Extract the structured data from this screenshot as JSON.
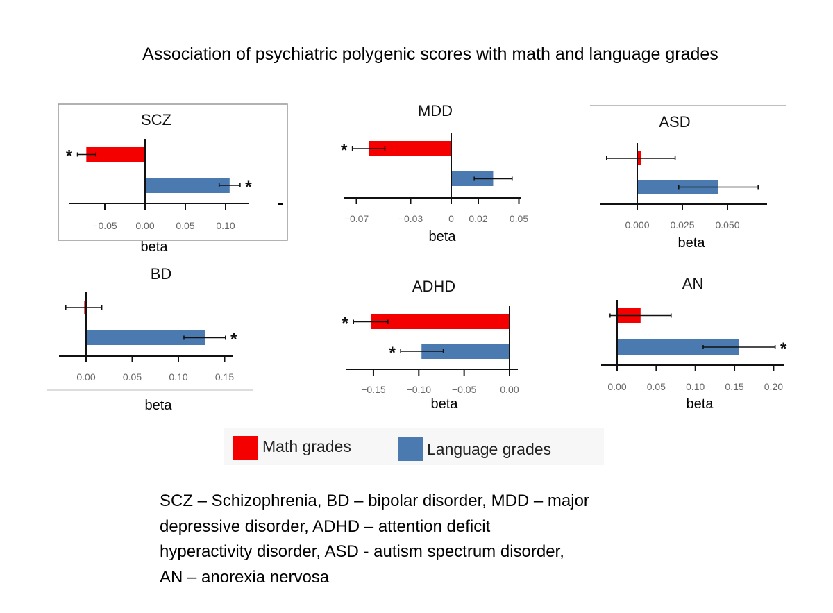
{
  "title": "Association of psychiatric polygenic scores with math and language grades",
  "colors": {
    "math": "#f40000",
    "language": "#4a7ab0"
  },
  "legend": {
    "math": "Math grades",
    "language": "Language grades"
  },
  "footnote": [
    "SCZ – Schizophrenia, BD – bipolar disorder, MDD – major",
    "depressive disorder, ADHD – attention deficit",
    "hyperactivity disorder, ASD - autism spectrum disorder,",
    "AN – anorexia nervosa"
  ],
  "chart_data": [
    {
      "type": "bar",
      "orientation": "horizontal",
      "title": "SCZ",
      "xlabel": "beta",
      "ticks": [
        -0.05,
        0,
        0.05,
        0.1
      ],
      "tick_labels": [
        "−0.05",
        "0.00",
        "0.05",
        "0.10"
      ],
      "xlim": [
        -0.09,
        0.12
      ],
      "series": [
        {
          "name": "Math grades",
          "value": -0.073,
          "ci": [
            -0.084,
            -0.061
          ],
          "significant": true
        },
        {
          "name": "Language grades",
          "value": 0.105,
          "ci": [
            0.092,
            0.118
          ],
          "significant": true
        }
      ]
    },
    {
      "type": "bar",
      "orientation": "horizontal",
      "title": "MDD",
      "xlabel": "beta",
      "ticks": [
        -0.07,
        -0.03,
        0,
        0.02,
        0.05
      ],
      "tick_labels": [
        "−0.07",
        "−0.03",
        "0",
        "0.02",
        "0.05"
      ],
      "xlim": [
        -0.08,
        0.05
      ],
      "series": [
        {
          "name": "Math grades",
          "value": -0.061,
          "ci": [
            -0.073,
            -0.049
          ],
          "significant": true
        },
        {
          "name": "Language grades",
          "value": 0.031,
          "ci": [
            0.017,
            0.045
          ],
          "significant": false
        }
      ]
    },
    {
      "type": "bar",
      "orientation": "horizontal",
      "title": "ASD",
      "xlabel": "beta",
      "ticks": [
        0,
        0.025,
        0.05
      ],
      "tick_labels": [
        "0.000",
        "0.025",
        "0.050"
      ],
      "xlim": [
        -0.021,
        0.072
      ],
      "series": [
        {
          "name": "Math grades",
          "value": 0.002,
          "ci": [
            -0.017,
            0.021
          ],
          "significant": false
        },
        {
          "name": "Language grades",
          "value": 0.045,
          "ci": [
            0.023,
            0.067
          ],
          "significant": false
        }
      ]
    },
    {
      "type": "bar",
      "orientation": "horizontal",
      "title": "BD",
      "xlabel": "beta",
      "ticks": [
        0,
        0.05,
        0.1,
        0.15
      ],
      "tick_labels": [
        "0.00",
        "0.05",
        "0.10",
        "0.15"
      ],
      "xlim": [
        -0.03,
        0.16
      ],
      "series": [
        {
          "name": "Math grades",
          "value": -0.002,
          "ci": [
            -0.022,
            0.017
          ],
          "significant": false
        },
        {
          "name": "Language grades",
          "value": 0.129,
          "ci": [
            0.106,
            0.151
          ],
          "significant": true
        }
      ]
    },
    {
      "type": "bar",
      "orientation": "horizontal",
      "title": "ADHD",
      "xlabel": "beta",
      "ticks": [
        -0.15,
        -0.1,
        -0.05,
        0
      ],
      "tick_labels": [
        "−0.15",
        "−0.10",
        "−0.05",
        "0.00"
      ],
      "xlim": [
        -0.18,
        0.01
      ],
      "series": [
        {
          "name": "Math grades",
          "value": -0.153,
          "ci": [
            -0.172,
            -0.134
          ],
          "significant": true
        },
        {
          "name": "Language grades",
          "value": -0.097,
          "ci": [
            -0.12,
            -0.073
          ],
          "significant": true
        }
      ]
    },
    {
      "type": "bar",
      "orientation": "horizontal",
      "title": "AN",
      "xlabel": "beta",
      "ticks": [
        0,
        0.05,
        0.1,
        0.15,
        0.2
      ],
      "tick_labels": [
        "0.00",
        "0.05",
        "0.10",
        "0.15",
        "0.20"
      ],
      "xlim": [
        -0.02,
        0.21
      ],
      "series": [
        {
          "name": "Math grades",
          "value": 0.03,
          "ci": [
            -0.009,
            0.069
          ],
          "significant": false
        },
        {
          "name": "Language grades",
          "value": 0.156,
          "ci": [
            0.11,
            0.202
          ],
          "significant": true
        }
      ]
    }
  ]
}
